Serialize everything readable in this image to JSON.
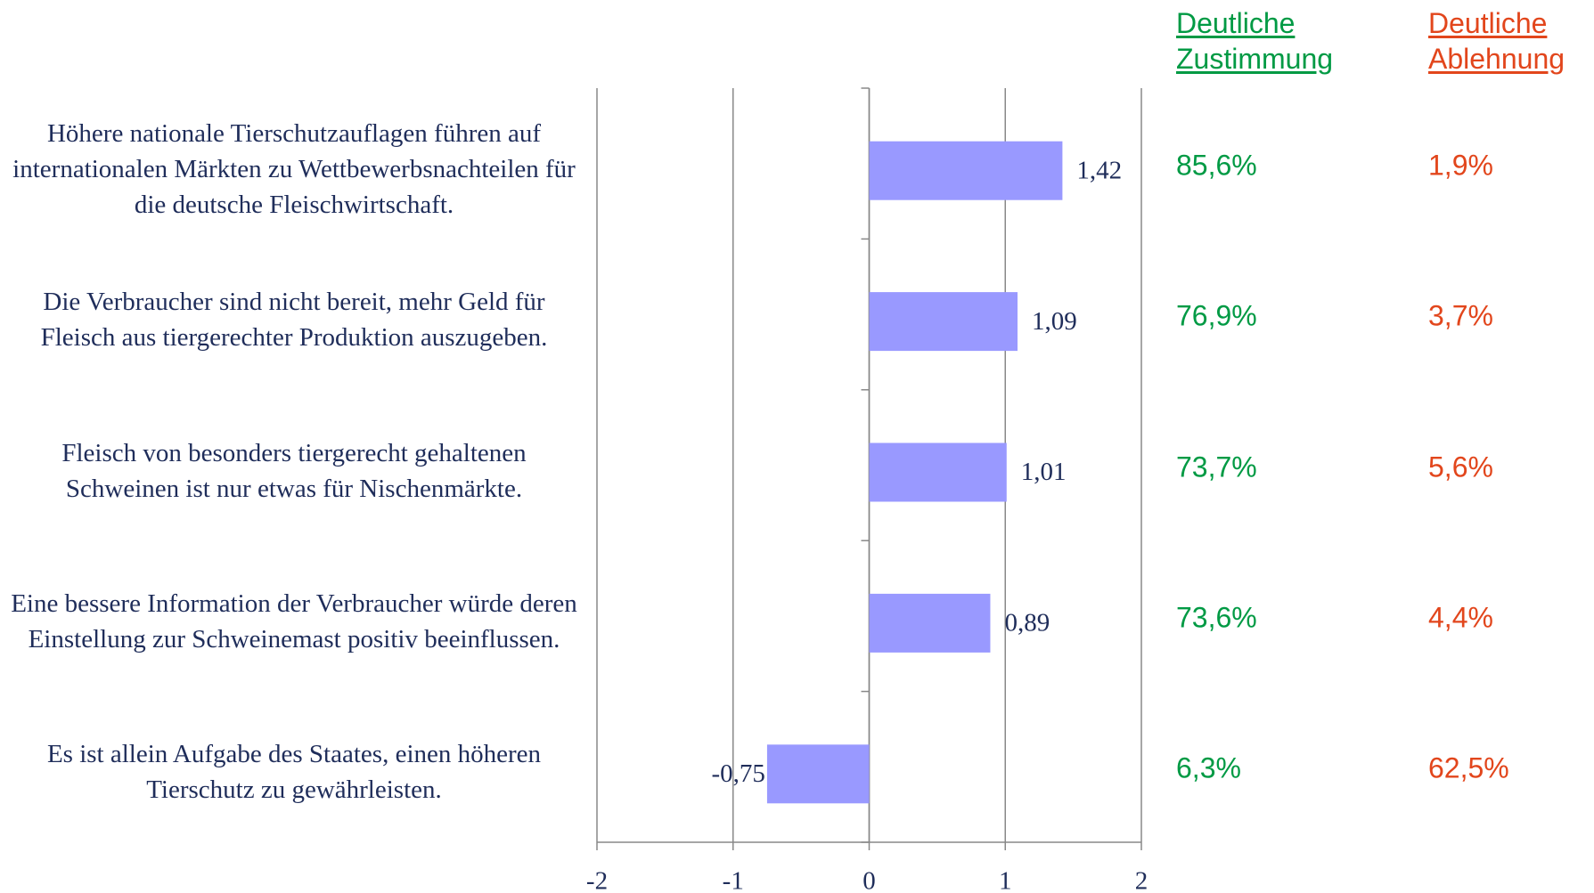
{
  "chart_data": {
    "type": "barh",
    "categories": [
      "Höhere nationale Tierschutzauflagen führen auf internationalen Märkten zu Wettbewerbsnachteilen für die deutsche Fleischwirtschaft.",
      "Die Verbraucher sind nicht bereit, mehr Geld für Fleisch aus tiergerechter Produktion auszugeben.",
      "Fleisch von besonders tiergerecht gehaltenen Schweinen ist nur etwas für Nischenmärkte.",
      "Eine bessere Information der Verbraucher würde deren Einstellung zur Schweinemast positiv beeinflussen.",
      "Es ist allein Aufgabe des Staates, einen höheren Tierschutz zu gewährleisten."
    ],
    "values": [
      1.42,
      1.09,
      1.01,
      0.89,
      -0.75
    ],
    "value_labels": [
      "1,42",
      "1,09",
      "1,01",
      "0,89",
      "-0,75"
    ],
    "color": "#9999ff",
    "xlim": [
      -2,
      2
    ],
    "xticks": [
      -2,
      -1,
      0,
      1,
      2
    ],
    "grid": true,
    "columns": [
      {
        "name": "Deutliche Zustimmung",
        "color": "#009a44",
        "values": [
          85.6,
          76.9,
          73.7,
          73.6,
          6.3
        ],
        "value_labels": [
          "85,6%",
          "76,9%",
          "73,7%",
          "73,6%",
          "6,3%"
        ]
      },
      {
        "name": "Deutliche Ablehnung",
        "color": "#e2461c",
        "values": [
          1.9,
          3.7,
          5.6,
          4.4,
          62.5
        ],
        "value_labels": [
          "1,9%",
          "3,7%",
          "5,6%",
          "4,4%",
          "62,5%"
        ]
      }
    ]
  }
}
